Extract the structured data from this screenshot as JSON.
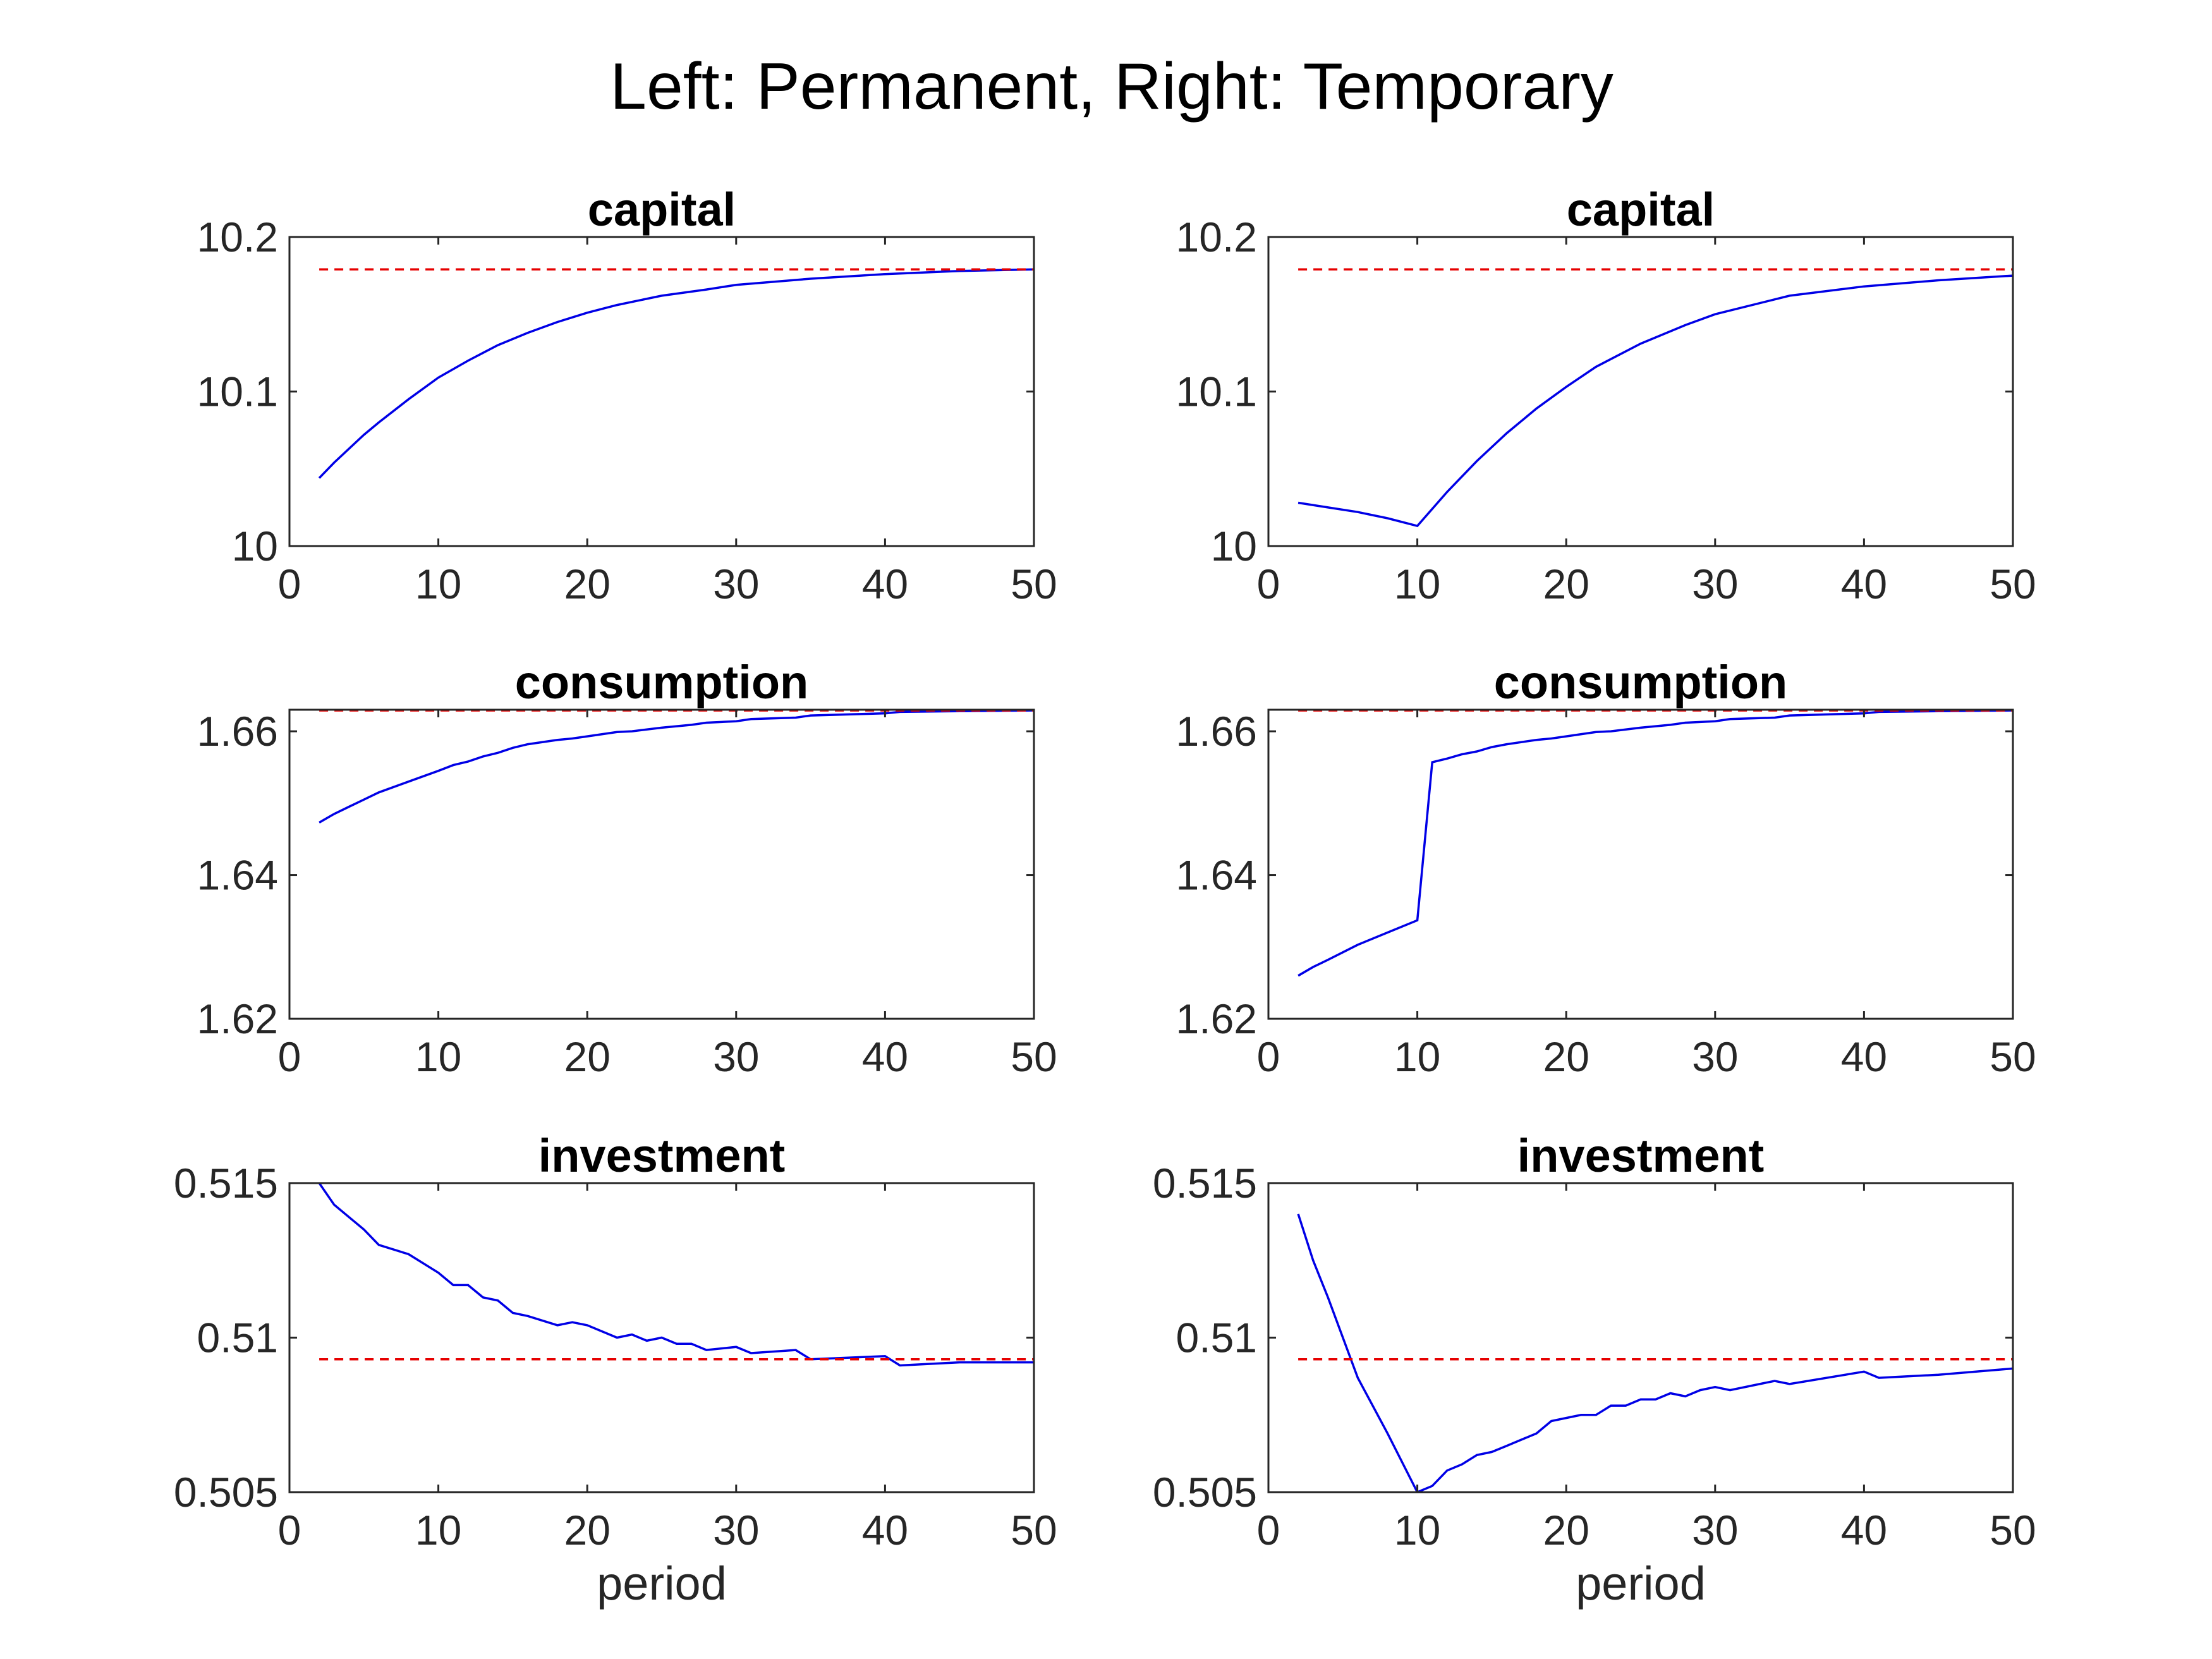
{
  "figure": {
    "title": "Left: Permanent, Right: Temporary"
  },
  "colors": {
    "path": "#0000e6",
    "steady_state": "#e60000",
    "axes": "#262626",
    "background": "#ffffff"
  },
  "chart_data": [
    {
      "type": "line",
      "title": "capital",
      "xlabel": "",
      "ylabel": "",
      "xlim": [
        0,
        50
      ],
      "ylim": [
        10,
        10.2
      ],
      "xticks": [
        "0",
        "10",
        "20",
        "30",
        "40",
        "50"
      ],
      "yticks": [
        "10",
        "10.1",
        "10.2"
      ],
      "grid": false,
      "series": [
        {
          "style": "solid",
          "x": [
            2,
            3,
            4,
            5,
            6,
            8,
            10,
            12,
            14,
            16,
            18,
            20,
            22,
            25,
            28,
            30,
            35,
            40,
            45,
            50
          ],
          "y": [
            10.044,
            10.054,
            10.063,
            10.072,
            10.08,
            10.095,
            10.109,
            10.12,
            10.13,
            10.138,
            10.145,
            10.151,
            10.156,
            10.162,
            10.166,
            10.169,
            10.173,
            10.176,
            10.178,
            10.179
          ]
        },
        {
          "style": "dashed",
          "x": [
            2,
            50
          ],
          "y": [
            10.179,
            10.179
          ]
        }
      ]
    },
    {
      "type": "line",
      "title": "capital",
      "xlabel": "",
      "ylabel": "",
      "xlim": [
        0,
        50
      ],
      "ylim": [
        10,
        10.2
      ],
      "xticks": [
        "0",
        "10",
        "20",
        "30",
        "40",
        "50"
      ],
      "yticks": [
        "10",
        "10.1",
        "10.2"
      ],
      "grid": false,
      "series": [
        {
          "style": "solid",
          "x": [
            2,
            4,
            6,
            8,
            10,
            12,
            14,
            16,
            18,
            20,
            22,
            25,
            28,
            30,
            35,
            40,
            45,
            50
          ],
          "y": [
            10.028,
            10.025,
            10.022,
            10.018,
            10.013,
            10.035,
            10.055,
            10.073,
            10.089,
            10.103,
            10.116,
            10.131,
            10.143,
            10.15,
            10.162,
            10.168,
            10.172,
            10.175
          ]
        },
        {
          "style": "dashed",
          "x": [
            2,
            50
          ],
          "y": [
            10.179,
            10.179
          ]
        }
      ]
    },
    {
      "type": "line",
      "title": "consumption",
      "xlabel": "",
      "ylabel": "",
      "xlim": [
        0,
        50
      ],
      "ylim": [
        1.62,
        1.663
      ],
      "xticks": [
        "0",
        "10",
        "20",
        "30",
        "40",
        "50"
      ],
      "yticks": [
        "1.62",
        "1.64",
        "1.66"
      ],
      "grid": false,
      "series": [
        {
          "style": "solid",
          "x": [
            2,
            3,
            4,
            5,
            6,
            8,
            10,
            11,
            12,
            13,
            14,
            15,
            16,
            18,
            19,
            20,
            22,
            23,
            25,
            27,
            28,
            30,
            31,
            34,
            35,
            40,
            41,
            45,
            50
          ],
          "y": [
            1.6473,
            1.6485,
            1.6495,
            1.6505,
            1.6515,
            1.653,
            1.6545,
            1.6553,
            1.6558,
            1.6565,
            1.657,
            1.6577,
            1.6582,
            1.6588,
            1.659,
            1.6593,
            1.6599,
            1.66,
            1.6605,
            1.6609,
            1.6612,
            1.6614,
            1.6617,
            1.6619,
            1.6622,
            1.6625,
            1.6627,
            1.6628,
            1.6629
          ]
        },
        {
          "style": "dashed",
          "x": [
            2,
            50
          ],
          "y": [
            1.6629,
            1.6629
          ]
        }
      ]
    },
    {
      "type": "line",
      "title": "consumption",
      "xlabel": "",
      "ylabel": "",
      "xlim": [
        0,
        50
      ],
      "ylim": [
        1.62,
        1.663
      ],
      "xticks": [
        "0",
        "10",
        "20",
        "30",
        "40",
        "50"
      ],
      "yticks": [
        "1.62",
        "1.64",
        "1.66"
      ],
      "grid": false,
      "series": [
        {
          "style": "solid",
          "x": [
            2,
            3,
            4,
            6,
            8,
            10,
            11,
            12,
            13,
            14,
            15,
            16,
            18,
            19,
            20,
            22,
            23,
            25,
            27,
            28,
            30,
            31,
            34,
            35,
            40,
            41,
            45,
            50
          ],
          "y": [
            1.626,
            1.6272,
            1.6282,
            1.6303,
            1.632,
            1.6337,
            1.6557,
            1.6562,
            1.6568,
            1.6572,
            1.6578,
            1.6582,
            1.6588,
            1.659,
            1.6593,
            1.6599,
            1.66,
            1.6605,
            1.6609,
            1.6612,
            1.6614,
            1.6617,
            1.6619,
            1.6622,
            1.6625,
            1.6627,
            1.6628,
            1.6629
          ]
        },
        {
          "style": "dashed",
          "x": [
            2,
            50
          ],
          "y": [
            1.6629,
            1.6629
          ]
        }
      ]
    },
    {
      "type": "line",
      "title": "investment",
      "xlabel": "period",
      "ylabel": "",
      "xlim": [
        0,
        50
      ],
      "ylim": [
        0.505,
        0.515
      ],
      "xticks": [
        "0",
        "10",
        "20",
        "30",
        "40",
        "50"
      ],
      "yticks": [
        "0.505",
        "0.51",
        "0.515"
      ],
      "grid": false,
      "series": [
        {
          "style": "solid",
          "x": [
            2,
            3,
            4,
            5,
            6,
            8,
            10,
            11,
            12,
            13,
            14,
            15,
            16,
            18,
            19,
            20,
            22,
            23,
            24,
            25,
            26,
            27,
            28,
            30,
            31,
            34,
            35,
            40,
            41,
            45,
            50
          ],
          "y": [
            0.515,
            0.5143,
            0.5139,
            0.5135,
            0.513,
            0.5127,
            0.5121,
            0.5117,
            0.5117,
            0.5113,
            0.5112,
            0.5108,
            0.5107,
            0.5104,
            0.5105,
            0.5104,
            0.51,
            0.5101,
            0.5099,
            0.51,
            0.5098,
            0.5098,
            0.5096,
            0.5097,
            0.5095,
            0.5096,
            0.5093,
            0.5094,
            0.5091,
            0.5092,
            0.5092
          ]
        },
        {
          "style": "dashed",
          "x": [
            2,
            50
          ],
          "y": [
            0.5093,
            0.5093
          ]
        }
      ]
    },
    {
      "type": "line",
      "title": "investment",
      "xlabel": "period",
      "ylabel": "",
      "xlim": [
        0,
        50
      ],
      "ylim": [
        0.505,
        0.515
      ],
      "xticks": [
        "0",
        "10",
        "20",
        "30",
        "40",
        "50"
      ],
      "yticks": [
        "0.505",
        "0.51",
        "0.515"
      ],
      "grid": false,
      "series": [
        {
          "style": "solid",
          "x": [
            2,
            3,
            4,
            6,
            8,
            10,
            11,
            12,
            13,
            14,
            15,
            16,
            17,
            18,
            19,
            20,
            21,
            22,
            23,
            24,
            25,
            26,
            27,
            28,
            29,
            30,
            31,
            34,
            35,
            40,
            41,
            45,
            50
          ],
          "y": [
            0.514,
            0.5125,
            0.5113,
            0.5087,
            0.5069,
            0.505,
            0.5052,
            0.5057,
            0.5059,
            0.5062,
            0.5063,
            0.5065,
            0.5067,
            0.5069,
            0.5073,
            0.5074,
            0.5075,
            0.5075,
            0.5078,
            0.5078,
            0.508,
            0.508,
            0.5082,
            0.5081,
            0.5083,
            0.5084,
            0.5083,
            0.5086,
            0.5085,
            0.5089,
            0.5087,
            0.5088,
            0.509
          ]
        },
        {
          "style": "dashed",
          "x": [
            2,
            50
          ],
          "y": [
            0.5093,
            0.5093
          ]
        }
      ]
    }
  ]
}
